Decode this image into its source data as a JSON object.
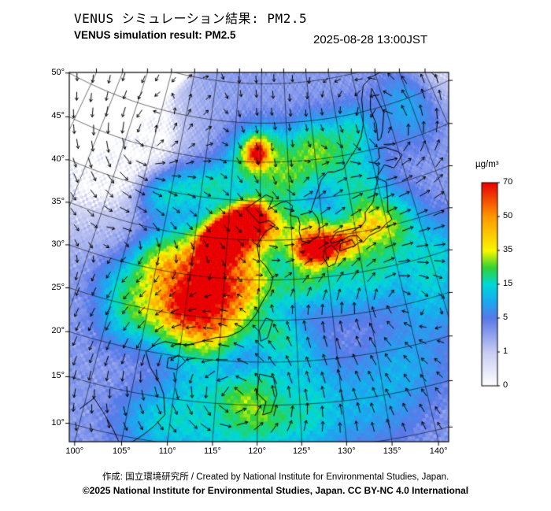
{
  "header": {
    "title_jp": "VENUS シミュレーション結果: PM2.5",
    "title_en": "VENUS simulation result: PM2.5",
    "timestamp": "2025-08-28 13:00JST"
  },
  "footer": {
    "credit": "作成: 国立環境研究所 / Created by National Institute for Environmental Studies, Japan.",
    "copyright": "©2025 National Institute for Environmental Studies, Japan. CC BY-NC 4.0 International"
  },
  "colorbar": {
    "unit": "µg/m³",
    "ticks": [
      0,
      1,
      5,
      15,
      35,
      50,
      70
    ],
    "stops": [
      [
        0,
        "#ffffff"
      ],
      [
        1,
        "#c8ccf2"
      ],
      [
        5,
        "#5a78e8"
      ],
      [
        10,
        "#18aaf0"
      ],
      [
        15,
        "#00d8d8"
      ],
      [
        25,
        "#32d232"
      ],
      [
        35,
        "#f8f800"
      ],
      [
        50,
        "#ff9800"
      ],
      [
        70,
        "#e80000"
      ]
    ]
  },
  "chart_data": {
    "type": "heatmap",
    "title": "VENUS simulation result: PM2.5",
    "variable": "PM2.5",
    "unit": "µg/m³",
    "tick_suffix": "°",
    "lat_ticks": [
      10,
      15,
      20,
      25,
      30,
      35,
      40,
      45,
      50
    ],
    "lon_ticks": [
      100,
      105,
      110,
      115,
      120,
      125,
      130,
      135,
      140
    ],
    "lat_range": [
      8,
      56
    ],
    "lon_range": [
      80,
      162
    ],
    "overlay": "wind-vectors",
    "plumes": [
      [
        113.0,
        34.0,
        1.4,
        52
      ],
      [
        114.5,
        35.3,
        1.5,
        68
      ],
      [
        116.0,
        36.4,
        1.4,
        66
      ],
      [
        117.6,
        37.4,
        1.3,
        55
      ],
      [
        118.9,
        38.4,
        1.2,
        38
      ],
      [
        114.0,
        33.0,
        2.4,
        28
      ],
      [
        117.0,
        35.3,
        2.6,
        30
      ],
      [
        112.0,
        31.3,
        2.2,
        24
      ],
      [
        119.9,
        36.8,
        1.8,
        22
      ],
      [
        111.0,
        28.8,
        2.6,
        24
      ],
      [
        108.5,
        26.2,
        2.7,
        22
      ],
      [
        113.4,
        26.6,
        2.5,
        23
      ],
      [
        110.2,
        23.8,
        2.3,
        20
      ],
      [
        115.6,
        25.0,
        2.3,
        18
      ],
      [
        117.2,
        28.3,
        2.3,
        21
      ],
      [
        119.2,
        30.2,
        2.1,
        20
      ],
      [
        110.6,
        26.6,
        1.3,
        30
      ],
      [
        113.2,
        28.8,
        1.3,
        30
      ],
      [
        106.2,
        29.8,
        2.2,
        14
      ],
      [
        104.8,
        30.8,
        1.8,
        13
      ],
      [
        104.6,
        25.6,
        2.1,
        11
      ],
      [
        108.2,
        33.0,
        2.4,
        14
      ],
      [
        113.6,
        22.5,
        1.7,
        15
      ],
      [
        121.1,
        37.4,
        1.7,
        18
      ],
      [
        123.2,
        35.6,
        2.0,
        13
      ],
      [
        123.6,
        42.0,
        2.4,
        13
      ],
      [
        126.2,
        44.0,
        2.4,
        11
      ],
      [
        119.3,
        46.2,
        1.2,
        52
      ],
      [
        118.0,
        45.0,
        2.4,
        18
      ],
      [
        121.6,
        46.6,
        2.1,
        14
      ],
      [
        129.6,
        46.6,
        2.3,
        16
      ],
      [
        133.2,
        45.4,
        2.5,
        12
      ],
      [
        138.0,
        47.6,
        2.2,
        12
      ],
      [
        127.0,
        36.6,
        1.7,
        16
      ],
      [
        129.3,
        35.9,
        1.4,
        20
      ],
      [
        126.5,
        33.8,
        1.3,
        34
      ],
      [
        128.3,
        33.4,
        1.2,
        48
      ],
      [
        130.2,
        33.6,
        1.2,
        44
      ],
      [
        132.1,
        34.2,
        1.3,
        28
      ],
      [
        134.1,
        34.5,
        1.5,
        22
      ],
      [
        136.6,
        35.2,
        1.7,
        16
      ],
      [
        139.0,
        35.8,
        1.7,
        13
      ],
      [
        137.6,
        37.6,
        1.9,
        9
      ],
      [
        133.0,
        32.4,
        1.9,
        11
      ],
      [
        137.6,
        31.0,
        2.1,
        9
      ],
      [
        140.6,
        33.6,
        1.9,
        11
      ],
      [
        142.2,
        36.2,
        2.1,
        9
      ],
      [
        136.0,
        28.4,
        2.3,
        7
      ],
      [
        131.0,
        28.0,
        2.1,
        7
      ],
      [
        134.2,
        39.6,
        2.5,
        8
      ],
      [
        138.2,
        41.6,
        2.3,
        8
      ],
      [
        127.9,
        30.9,
        1.8,
        14
      ],
      [
        124.9,
        29.0,
        2.0,
        12
      ],
      [
        112.0,
        13.0,
        2.7,
        7
      ],
      [
        117.0,
        11.6,
        2.5,
        8
      ],
      [
        121.2,
        13.6,
        2.1,
        9
      ],
      [
        125.6,
        12.6,
        2.5,
        8
      ],
      [
        113.2,
        17.6,
        2.3,
        8
      ],
      [
        120.2,
        17.6,
        1.7,
        10
      ],
      [
        126.2,
        16.6,
        2.5,
        7
      ],
      [
        133.2,
        14.2,
        2.9,
        6
      ],
      [
        138.2,
        18.2,
        2.9,
        6
      ],
      [
        108.2,
        12.2,
        2.3,
        7
      ],
      [
        117.5,
        15.8,
        1.5,
        11
      ],
      [
        119.6,
        14.2,
        1.7,
        9
      ],
      [
        122.1,
        23.6,
        1.7,
        12
      ],
      [
        124.6,
        21.2,
        2.3,
        8
      ],
      [
        101.2,
        27.2,
        2.1,
        9
      ],
      [
        102.6,
        23.2,
        2.1,
        8
      ],
      [
        103.6,
        39.2,
        1.9,
        10
      ],
      [
        107.6,
        40.6,
        2.1,
        10
      ],
      [
        112.2,
        41.6,
        1.9,
        12
      ],
      [
        144.2,
        28.2,
        2.5,
        8
      ],
      [
        146.2,
        31.2,
        2.5,
        7
      ],
      [
        143.2,
        24.2,
        2.5,
        6
      ],
      [
        149.0,
        49.0,
        3.0,
        7
      ]
    ],
    "vortices": [
      [
        117.3,
        15.8,
        11,
        2.2
      ],
      [
        144.5,
        46.5,
        8,
        3.0
      ],
      [
        97.5,
        46.0,
        4.5,
        2.5
      ],
      [
        138.0,
        27.0,
        -5,
        4.0
      ],
      [
        109.0,
        19.5,
        3.5,
        2.2
      ],
      [
        126.5,
        41.5,
        3.0,
        2.8
      ],
      [
        101.0,
        33.0,
        -3.0,
        3.0
      ]
    ],
    "coastlines": {
      "indochina": [
        [
          99.6,
          11.8
        ],
        [
          100.9,
          13.4
        ],
        [
          102.2,
          12.2
        ],
        [
          103.8,
          10.5
        ],
        [
          105.0,
          8.9
        ],
        [
          106.2,
          9.6
        ],
        [
          107.3,
          10.6
        ],
        [
          108.3,
          11.7
        ],
        [
          109.3,
          13.1
        ],
        [
          108.8,
          15.4
        ],
        [
          108.1,
          16.6
        ],
        [
          106.6,
          18.3
        ],
        [
          105.8,
          19.9
        ],
        [
          106.8,
          20.9
        ],
        [
          108.0,
          21.5
        ]
      ],
      "china": [
        [
          108.0,
          21.5
        ],
        [
          109.7,
          21.4
        ],
        [
          111.0,
          21.5
        ],
        [
          113.0,
          22.2
        ],
        [
          114.5,
          22.7
        ],
        [
          116.0,
          22.9
        ],
        [
          117.5,
          23.6
        ],
        [
          118.6,
          24.5
        ],
        [
          119.6,
          25.7
        ],
        [
          120.5,
          27.3
        ],
        [
          121.6,
          28.9
        ],
        [
          122.0,
          30.3
        ],
        [
          121.0,
          31.7
        ],
        [
          120.0,
          32.6
        ],
        [
          119.6,
          34.4
        ],
        [
          120.9,
          36.1
        ],
        [
          122.5,
          36.9
        ],
        [
          121.5,
          37.5
        ],
        [
          119.9,
          37.2
        ],
        [
          118.8,
          38.1
        ],
        [
          117.7,
          39.0
        ],
        [
          119.3,
          39.9
        ],
        [
          121.0,
          40.8
        ],
        [
          122.2,
          40.4
        ],
        [
          121.3,
          38.9
        ],
        [
          122.0,
          39.2
        ],
        [
          123.5,
          39.8
        ],
        [
          124.4,
          39.9
        ]
      ],
      "korea": [
        [
          124.4,
          39.9
        ],
        [
          125.4,
          39.3
        ],
        [
          124.9,
          38.1
        ],
        [
          126.2,
          37.8
        ],
        [
          126.4,
          36.9
        ],
        [
          126.2,
          36.0
        ],
        [
          126.5,
          34.8
        ],
        [
          127.5,
          34.4
        ],
        [
          128.4,
          34.9
        ],
        [
          129.2,
          35.2
        ],
        [
          129.5,
          36.4
        ],
        [
          129.3,
          37.5
        ],
        [
          128.4,
          38.6
        ],
        [
          129.1,
          39.8
        ],
        [
          129.7,
          40.8
        ],
        [
          130.6,
          42.3
        ],
        [
          131.9,
          43.2
        ]
      ],
      "russia": [
        [
          131.9,
          43.2
        ],
        [
          133.0,
          43.1
        ],
        [
          134.7,
          43.3
        ],
        [
          136.0,
          44.4
        ],
        [
          137.7,
          45.6
        ],
        [
          139.0,
          46.9
        ],
        [
          139.9,
          48.3
        ],
        [
          140.4,
          49.8
        ],
        [
          140.8,
          51.5
        ]
      ],
      "okhotsk": [
        [
          140.8,
          51.5
        ],
        [
          141.8,
          53.2
        ],
        [
          144.0,
          54.0
        ],
        [
          147.0,
          54.3
        ],
        [
          150.5,
          54.8
        ],
        [
          153.5,
          55.5
        ]
      ],
      "sakhalin": [
        [
          141.9,
          45.9
        ],
        [
          142.4,
          48.0
        ],
        [
          142.0,
          50.0
        ],
        [
          142.7,
          51.6
        ],
        [
          143.4,
          52.6
        ],
        [
          144.4,
          49.2
        ],
        [
          143.2,
          47.0
        ],
        [
          142.5,
          46.1
        ],
        [
          141.9,
          45.9
        ]
      ],
      "kamchatka": [
        [
          156.7,
          50.9
        ],
        [
          155.9,
          52.6
        ],
        [
          156.2,
          54.5
        ],
        [
          158.0,
          55.8
        ]
      ],
      "hainan": [
        [
          108.7,
          18.5
        ],
        [
          109.9,
          18.4
        ],
        [
          110.9,
          19.5
        ],
        [
          110.1,
          20.1
        ],
        [
          108.7,
          19.6
        ],
        [
          108.7,
          18.5
        ]
      ],
      "taiwan": [
        [
          121.0,
          25.3
        ],
        [
          121.9,
          25.0
        ],
        [
          121.2,
          22.9
        ],
        [
          120.3,
          22.5
        ],
        [
          120.1,
          23.8
        ],
        [
          121.0,
          25.3
        ]
      ],
      "luzon": [
        [
          120.2,
          18.6
        ],
        [
          121.9,
          18.2
        ],
        [
          122.3,
          16.3
        ],
        [
          121.6,
          14.2
        ],
        [
          120.6,
          13.9
        ],
        [
          121.0,
          15.4
        ],
        [
          119.9,
          16.4
        ],
        [
          120.2,
          18.6
        ]
      ],
      "kyushu": [
        [
          130.2,
          31.2
        ],
        [
          131.2,
          31.5
        ],
        [
          131.9,
          32.8
        ],
        [
          131.0,
          33.9
        ],
        [
          129.8,
          33.4
        ],
        [
          129.6,
          32.4
        ],
        [
          130.2,
          31.2
        ]
      ],
      "shikoku": [
        [
          132.1,
          33.0
        ],
        [
          134.6,
          33.4
        ],
        [
          134.2,
          34.2
        ],
        [
          132.4,
          33.9
        ],
        [
          132.1,
          33.0
        ]
      ],
      "honshu": [
        [
          131.0,
          34.1
        ],
        [
          132.6,
          34.3
        ],
        [
          134.0,
          34.7
        ],
        [
          135.1,
          34.6
        ],
        [
          135.8,
          33.6
        ],
        [
          136.9,
          34.3
        ],
        [
          138.8,
          34.7
        ],
        [
          139.8,
          35.3
        ],
        [
          140.9,
          35.7
        ],
        [
          140.6,
          36.9
        ],
        [
          141.0,
          38.3
        ],
        [
          141.5,
          40.5
        ],
        [
          140.3,
          41.2
        ],
        [
          139.4,
          39.9
        ],
        [
          138.6,
          38.4
        ],
        [
          137.0,
          37.3
        ],
        [
          136.8,
          36.3
        ],
        [
          135.9,
          35.6
        ],
        [
          133.4,
          35.5
        ],
        [
          132.0,
          35.4
        ],
        [
          130.9,
          34.4
        ],
        [
          131.0,
          34.1
        ]
      ],
      "hokkaido": [
        [
          140.4,
          41.6
        ],
        [
          140.9,
          42.6
        ],
        [
          140.3,
          43.3
        ],
        [
          141.4,
          43.7
        ],
        [
          141.6,
          44.9
        ],
        [
          142.9,
          44.8
        ],
        [
          144.8,
          43.9
        ],
        [
          145.4,
          43.3
        ],
        [
          143.4,
          42.0
        ],
        [
          141.9,
          42.7
        ],
        [
          140.4,
          41.6
        ]
      ],
      "jeju": [
        [
          126.2,
          33.4
        ],
        [
          126.9,
          33.5
        ],
        [
          126.6,
          33.2
        ],
        [
          126.2,
          33.4
        ]
      ]
    }
  }
}
